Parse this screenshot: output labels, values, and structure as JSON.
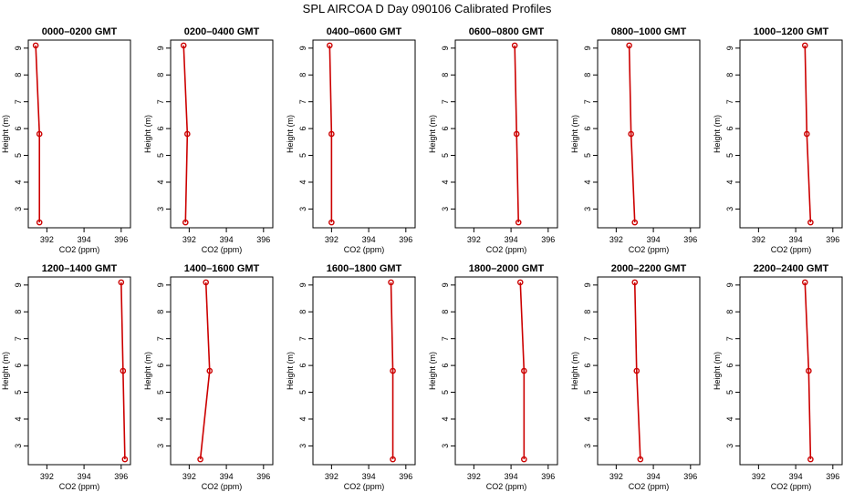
{
  "title": "SPL AIRCOA D  Day 090106  Calibrated Profiles",
  "chart_data": {
    "type": "line",
    "xlabel": "CO2 (ppm)",
    "ylabel": "Height (m)",
    "xlim": [
      391,
      396.5
    ],
    "ylim": [
      2.3,
      9.3
    ],
    "xticks": [
      392,
      394,
      396
    ],
    "yticks": [
      3,
      4,
      5,
      6,
      7,
      8,
      9
    ],
    "heights": [
      2.5,
      5.8,
      9.1
    ],
    "color": "#cc0000",
    "panels": [
      {
        "name": "0000–0200 GMT",
        "co2": [
          391.6,
          391.6,
          391.4
        ]
      },
      {
        "name": "0200–0400 GMT",
        "co2": [
          391.8,
          391.9,
          391.7
        ]
      },
      {
        "name": "0400–0600 GMT",
        "co2": [
          392.0,
          392.0,
          391.9
        ]
      },
      {
        "name": "0600–0800 GMT",
        "co2": [
          394.4,
          394.3,
          394.2
        ]
      },
      {
        "name": "0800–1000 GMT",
        "co2": [
          393.0,
          392.8,
          392.7
        ]
      },
      {
        "name": "1000–1200 GMT",
        "co2": [
          394.8,
          394.6,
          394.5
        ]
      },
      {
        "name": "1200–1400 GMT",
        "co2": [
          396.2,
          396.1,
          396.0
        ]
      },
      {
        "name": "1400–1600 GMT",
        "co2": [
          392.6,
          393.1,
          392.9
        ]
      },
      {
        "name": "1600–1800 GMT",
        "co2": [
          395.3,
          395.3,
          395.2
        ]
      },
      {
        "name": "1800–2000 GMT",
        "co2": [
          394.7,
          394.7,
          394.5
        ]
      },
      {
        "name": "2000–2200 GMT",
        "co2": [
          393.3,
          393.1,
          393.0
        ]
      },
      {
        "name": "2200–2400 GMT",
        "co2": [
          394.8,
          394.7,
          394.5
        ]
      }
    ]
  }
}
